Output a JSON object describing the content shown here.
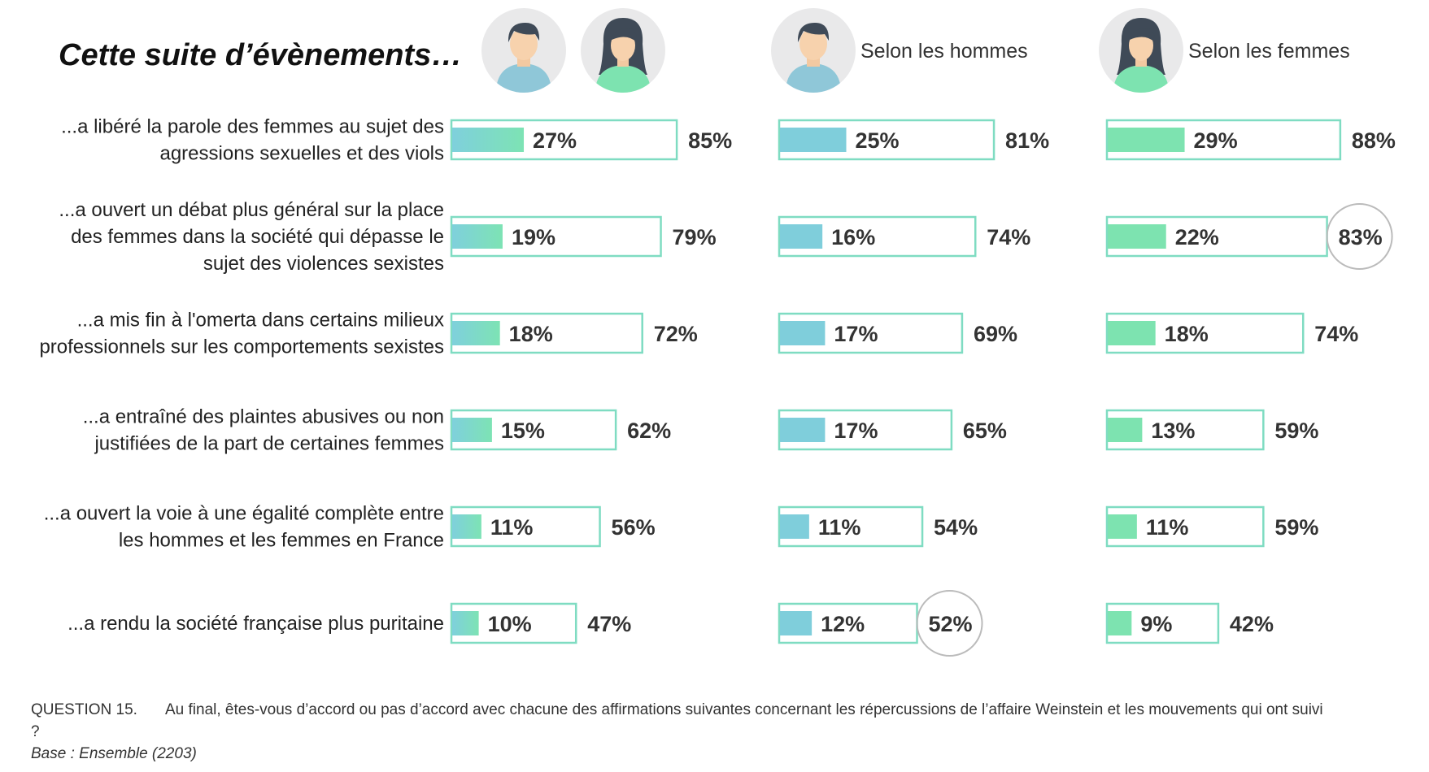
{
  "title": "Cette suite d’évènements…",
  "columns": [
    {
      "key": "ensemble",
      "header": "",
      "icons": [
        "man-icon",
        "woman-icon"
      ]
    },
    {
      "key": "hommes",
      "header": "Selon les hommes",
      "icons": [
        "man-icon"
      ]
    },
    {
      "key": "femmes",
      "header": "Selon les femmes",
      "icons": [
        "woman-icon"
      ]
    }
  ],
  "colors": {
    "ensemble_gradient": [
      "#7fd0dc",
      "#7de3b4"
    ],
    "hommes": "#7fcedb",
    "femmes": "#7de3b0",
    "outline": "#7fdcc2",
    "circle": "#bbbbbb"
  },
  "chart_data": {
    "type": "bar",
    "categories": [
      [
        "...a libéré la parole des femmes au sujet des",
        "agressions sexuelles et des viols"
      ],
      [
        "...a ouvert un débat plus général sur la place",
        "des femmes dans la société qui dépasse le",
        "sujet des violences sexistes"
      ],
      [
        "...a mis fin à l'omerta dans certains milieux",
        "professionnels sur les comportements sexistes"
      ],
      [
        "...a entraîné des plaintes abusives ou non",
        "justifiées de la part de certaines femmes"
      ],
      [
        "...a ouvert la voie à une égalité complète entre",
        "les hommes et les femmes en France"
      ],
      [
        "...a rendu la société française plus puritaine"
      ]
    ],
    "series": [
      {
        "name": "Selon les hommes et les femmes",
        "inner": [
          27,
          19,
          18,
          15,
          11,
          10
        ],
        "outer": [
          85,
          79,
          72,
          62,
          56,
          47
        ]
      },
      {
        "name": "Selon les hommes",
        "inner": [
          25,
          16,
          17,
          17,
          11,
          12
        ],
        "outer": [
          81,
          74,
          69,
          65,
          54,
          52
        ]
      },
      {
        "name": "Selon les femmes",
        "inner": [
          29,
          22,
          18,
          13,
          11,
          9
        ],
        "outer": [
          88,
          83,
          74,
          59,
          59,
          42
        ]
      }
    ],
    "highlighted": [
      {
        "series": 1,
        "row": 5
      },
      {
        "series": 2,
        "row": 1
      }
    ],
    "unit": "%",
    "ylim": [
      0,
      100
    ]
  },
  "footer": {
    "question_label": "QUESTION 15.",
    "question_text": "Au final, êtes-vous d’accord ou pas d’accord avec chacune des affirmations suivantes concernant les répercussions de l’affaire Weinstein et les mouvements qui ont suivi ?",
    "base": "Base : Ensemble (2203)"
  }
}
